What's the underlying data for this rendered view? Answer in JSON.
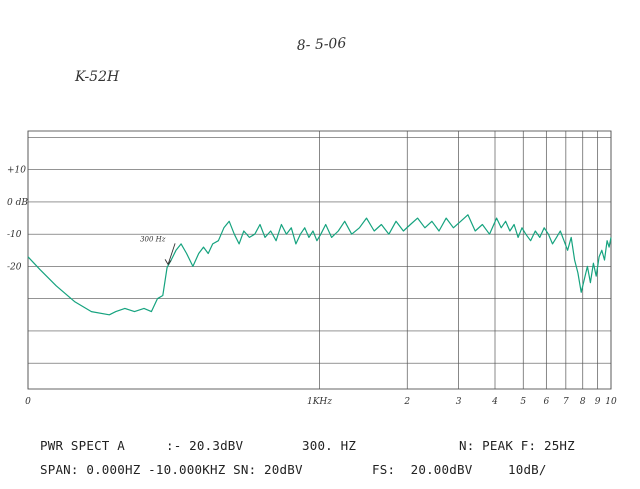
{
  "annotations": {
    "date": "8- 5-06",
    "label": "K-52H",
    "marker": "300 Hz"
  },
  "readout": {
    "line1_left": "PWR SPECT A",
    "line1_value": ":- 20.3dBV",
    "line1_freq": "300. HZ",
    "line1_right": "N: PEAK F: 25HZ",
    "line2_span": "SPAN: 0.000HZ -10.000KHZ SN: 20dBV",
    "line2_fs": "FS:  20.00dBV",
    "line2_scale": "10dB/"
  },
  "colors": {
    "trace": "#16a37f",
    "grid": "#555555"
  },
  "chart_data": {
    "type": "line",
    "xscale": "log",
    "xlim": [
      100,
      10000
    ],
    "ylim": [
      -58,
      22
    ],
    "grid": true,
    "y_tick_labels": [
      {
        "value": 10,
        "label": "+10"
      },
      {
        "value": 0,
        "label": "0 dB"
      },
      {
        "value": -10,
        "label": "-10"
      },
      {
        "value": -20,
        "label": "-20"
      }
    ],
    "x_tick_labels": [
      {
        "value": 100,
        "label": "0"
      },
      {
        "value": 1000,
        "label": "1KHz"
      },
      {
        "value": 2000,
        "label": "2"
      },
      {
        "value": 3000,
        "label": "3"
      },
      {
        "value": 4000,
        "label": "4"
      },
      {
        "value": 5000,
        "label": "5"
      },
      {
        "value": 6000,
        "label": "6"
      },
      {
        "value": 7000,
        "label": "7"
      },
      {
        "value": 8000,
        "label": "8"
      },
      {
        "value": 9000,
        "label": "9"
      },
      {
        "value": 10000,
        "label": "10"
      }
    ],
    "x_gridlines": [
      100,
      1000,
      2000,
      3000,
      4000,
      5000,
      6000,
      7000,
      8000,
      9000,
      10000
    ],
    "y_gridlines": [
      20,
      10,
      0,
      -10,
      -20,
      -30,
      -40,
      -50
    ],
    "marker": {
      "x": 300,
      "y": -20.3
    },
    "series": [
      {
        "x": [
          100,
          110,
          125,
          145,
          165,
          190,
          200,
          215,
          232,
          250,
          265,
          278,
          290,
          300,
          310,
          322,
          335,
          350,
          368,
          385,
          400,
          415,
          430,
          450,
          470,
          490,
          510,
          530,
          550,
          575,
          600,
          625,
          650,
          680,
          710,
          740,
          770,
          800,
          830,
          860,
          890,
          920,
          950,
          980,
          1010,
          1050,
          1100,
          1160,
          1220,
          1290,
          1370,
          1450,
          1540,
          1630,
          1730,
          1830,
          1940,
          2050,
          2170,
          2300,
          2430,
          2570,
          2720,
          2880,
          3050,
          3230,
          3420,
          3620,
          3830,
          4050,
          4200,
          4350,
          4500,
          4650,
          4800,
          4950,
          5100,
          5300,
          5500,
          5700,
          5900,
          6100,
          6300,
          6500,
          6700,
          6900,
          7100,
          7300,
          7500,
          7700,
          7900,
          8100,
          8300,
          8500,
          8700,
          8900,
          9100,
          9300,
          9500,
          9700,
          9850,
          10000
        ],
        "y": [
          -17,
          -21,
          -26,
          -31,
          -34,
          -35,
          -34,
          -33,
          -34,
          -33,
          -34,
          -30,
          -29,
          -20.3,
          -18,
          -15,
          -13,
          -16,
          -20,
          -16,
          -14,
          -16,
          -13,
          -12,
          -8,
          -6,
          -10,
          -13,
          -9,
          -11,
          -10,
          -7,
          -11,
          -9,
          -12,
          -7,
          -10,
          -8,
          -13,
          -10,
          -8,
          -11,
          -9,
          -12,
          -10,
          -7,
          -11,
          -9,
          -6,
          -10,
          -8,
          -5,
          -9,
          -7,
          -10,
          -6,
          -9,
          -7,
          -5,
          -8,
          -6,
          -9,
          -5,
          -8,
          -6,
          -4,
          -9,
          -7,
          -10,
          -5,
          -8,
          -6,
          -9,
          -7,
          -11,
          -8,
          -10,
          -12,
          -9,
          -11,
          -8,
          -10,
          -13,
          -11,
          -9,
          -12,
          -15,
          -11,
          -18,
          -22,
          -28,
          -24,
          -20,
          -25,
          -19,
          -23,
          -17,
          -15,
          -18,
          -12,
          -14,
          -11
        ]
      }
    ]
  }
}
